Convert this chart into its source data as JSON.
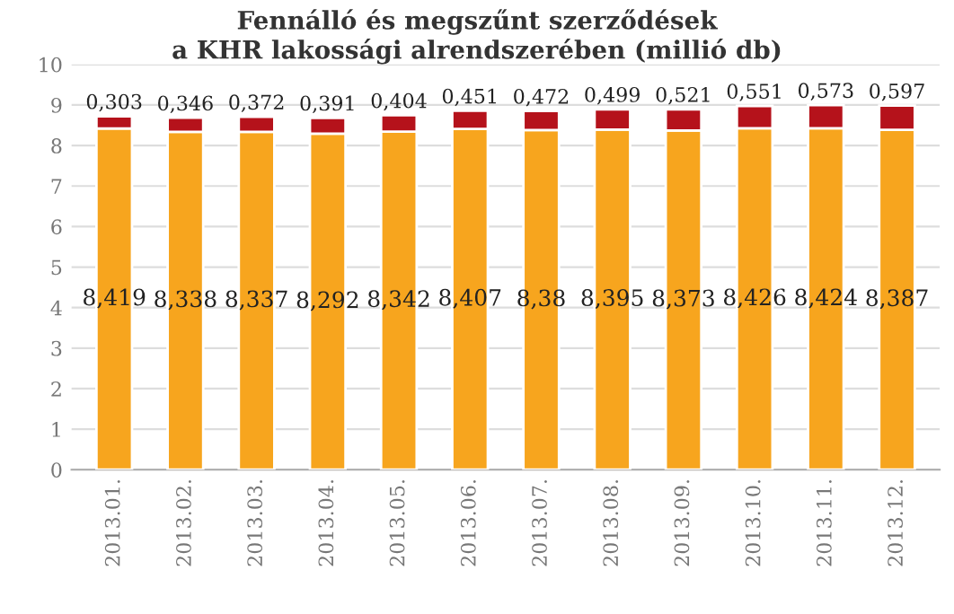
{
  "chart_data": {
    "type": "bar",
    "stacked": true,
    "title": "Fennálló és megszűnt szerződések\na KHR lakossági alrendszerében (millió db)",
    "categories": [
      "2013.01.",
      "2013.02.",
      "2013.03.",
      "2013.04.",
      "2013.05.",
      "2013.06.",
      "2013.07.",
      "2013.08.",
      "2013.09.",
      "2013.10.",
      "2013.11.",
      "2013.12."
    ],
    "series": [
      {
        "color": "#f7a51e",
        "values": [
          8.419,
          8.338,
          8.337,
          8.292,
          8.342,
          8.407,
          8.38,
          8.395,
          8.373,
          8.426,
          8.424,
          8.387
        ],
        "value_labels": [
          "8,419",
          "8,338",
          "8,337",
          "8,292",
          "8,342",
          "8,407",
          "8,38",
          "8,395",
          "8,373",
          "8,426",
          "8,424",
          "8,387"
        ]
      },
      {
        "color": "#b5121b",
        "values": [
          0.303,
          0.346,
          0.372,
          0.391,
          0.404,
          0.451,
          0.472,
          0.499,
          0.521,
          0.551,
          0.573,
          0.597
        ],
        "value_labels": [
          "0,303",
          "0,346",
          "0,372",
          "0,391",
          "0,404",
          "0,451",
          "0,472",
          "0,499",
          "0,521",
          "0,551",
          "0,573",
          "0,597"
        ]
      }
    ],
    "ylim": [
      0,
      10
    ],
    "yticks": [
      0,
      1,
      2,
      3,
      4,
      5,
      6,
      7,
      8,
      9,
      10
    ],
    "grid": "y",
    "legend": false
  }
}
